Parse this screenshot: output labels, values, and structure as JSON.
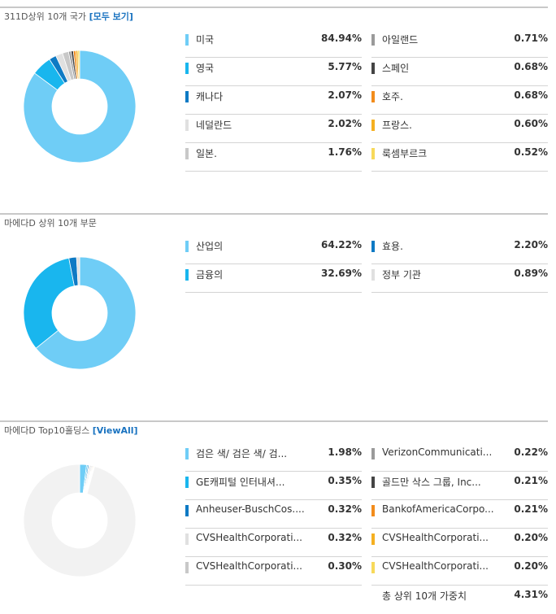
{
  "sections": [
    {
      "title": "311D상위 10개 국가",
      "link": "[모두 보기]",
      "chart_data": {
        "type": "pie",
        "categories": [
          "미국",
          "영국",
          "캐나다",
          "네덜란드",
          "일본.",
          "아일랜드",
          "스페인",
          "호주.",
          "프랑스.",
          "룩셈부르크"
        ],
        "values": [
          84.94,
          5.77,
          2.07,
          2.02,
          1.76,
          0.71,
          0.68,
          0.68,
          0.6,
          0.52
        ]
      },
      "items": [
        {
          "label": "미국",
          "value": "84.94%",
          "color": "#6fcdf6"
        },
        {
          "label": "영국",
          "value": "5.77%",
          "color": "#19b6ee"
        },
        {
          "label": "캐나다",
          "value": "2.07%",
          "color": "#0e7ac4"
        },
        {
          "label": "네덜란드",
          "value": "2.02%",
          "color": "#e0e0e0"
        },
        {
          "label": "일본.",
          "value": "1.76%",
          "color": "#c8c8c8"
        },
        {
          "label": "아일랜드",
          "value": "0.71%",
          "color": "#9a9a9a"
        },
        {
          "label": "스페인",
          "value": "0.68%",
          "color": "#444444"
        },
        {
          "label": "호주.",
          "value": "0.68%",
          "color": "#f28c1c"
        },
        {
          "label": "프랑스.",
          "value": "0.60%",
          "color": "#f5b021"
        },
        {
          "label": "룩셈부르크",
          "value": "0.52%",
          "color": "#f7d95a"
        }
      ]
    },
    {
      "title": "마에다D 상위 10개 부문",
      "link": "",
      "chart_data": {
        "type": "pie",
        "categories": [
          "산업의",
          "금융의",
          "효용.",
          "정부 기관"
        ],
        "values": [
          64.22,
          32.69,
          2.2,
          0.89
        ]
      },
      "items": [
        {
          "label": "산업의",
          "value": "64.22%",
          "color": "#6fcdf6"
        },
        {
          "label": "금융의",
          "value": "32.69%",
          "color": "#19b6ee"
        },
        {
          "label": "효용.",
          "value": "2.20%",
          "color": "#0e7ac4"
        },
        {
          "label": "정부 기관",
          "value": "0.89%",
          "color": "#e0e0e0"
        }
      ]
    },
    {
      "title": "마에다D Top10홀딩스",
      "link": "[ViewAll]",
      "chart_data": {
        "type": "pie",
        "categories": [
          "검은 색/ 검은 색/ 검...",
          "GE캐피털 인터내셔...",
          "Anheuser-BuschCos....",
          "CVSHealthCorporati...",
          "CVSHealthCorporati...",
          "VerizonCommunicati...",
          "골드만 삭스 그룹, Inc...",
          "BankofAmericaCorpo...",
          "CVSHealthCorporati...",
          "CVSHealthCorporati..."
        ],
        "values": [
          1.98,
          0.35,
          0.32,
          0.32,
          0.3,
          0.22,
          0.21,
          0.21,
          0.2,
          0.2
        ],
        "remainder": 95.69
      },
      "items": [
        {
          "label": "검은 색/ 검은 색/ 검...",
          "value": "1.98%",
          "color": "#6fcdf6"
        },
        {
          "label": "GE캐피털 인터내셔...",
          "value": "0.35%",
          "color": "#19b6ee"
        },
        {
          "label": "Anheuser-BuschCos....",
          "value": "0.32%",
          "color": "#0e7ac4"
        },
        {
          "label": "CVSHealthCorporati...",
          "value": "0.32%",
          "color": "#e0e0e0"
        },
        {
          "label": "CVSHealthCorporati...",
          "value": "0.30%",
          "color": "#c8c8c8"
        },
        {
          "label": "VerizonCommunicati...",
          "value": "0.22%",
          "color": "#9a9a9a"
        },
        {
          "label": "골드만 삭스 그룹, Inc...",
          "value": "0.21%",
          "color": "#444444"
        },
        {
          "label": "BankofAmericaCorpo...",
          "value": "0.21%",
          "color": "#f28c1c"
        },
        {
          "label": "CVSHealthCorporati...",
          "value": "0.20%",
          "color": "#f5b021"
        },
        {
          "label": "CVSHealthCorporati...",
          "value": "0.20%",
          "color": "#f7d95a"
        }
      ],
      "total_label": "총 상위 10개 가중치",
      "total_value": "4.31%"
    }
  ]
}
